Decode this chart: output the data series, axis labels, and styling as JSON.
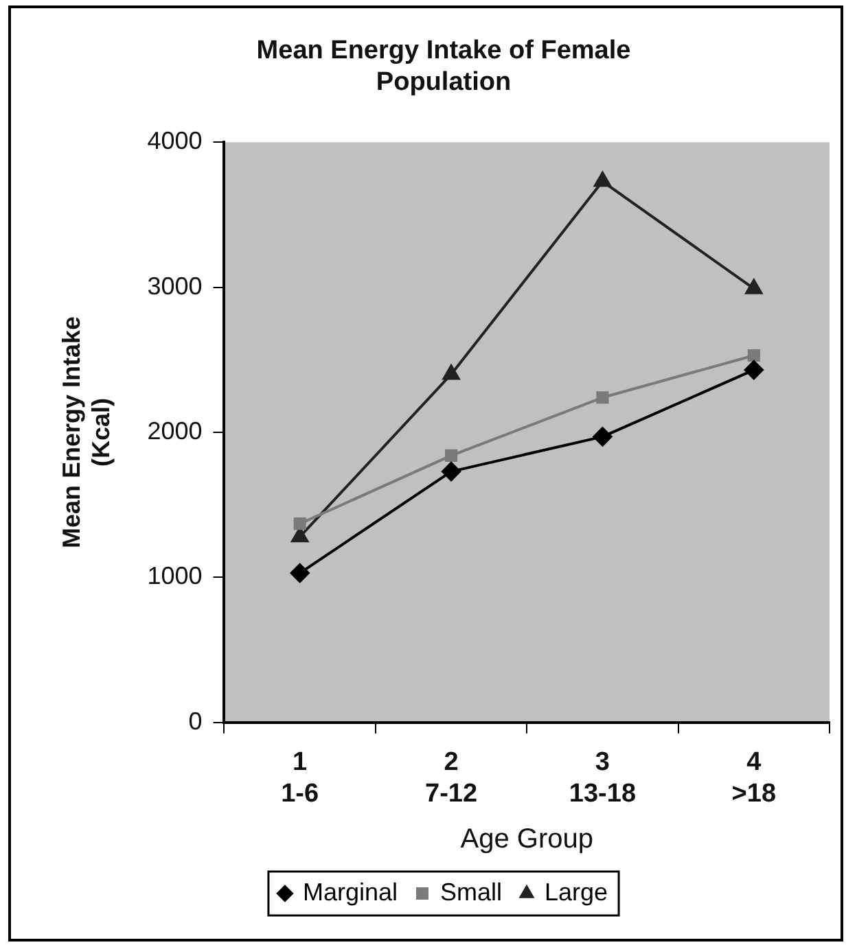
{
  "chart_data": {
    "type": "line",
    "title": "Mean Energy Intake of Female Population",
    "xlabel": "Age Group",
    "ylabel": "Mean Energy Intake (Kcal)",
    "categories": [
      "1\n1-6",
      "2\n7-12",
      "3\n13-18",
      "4\n>18"
    ],
    "series": [
      {
        "name": "Marginal",
        "color": "#000000",
        "marker": "diamond",
        "values": [
          1030,
          1730,
          1970,
          2430
        ]
      },
      {
        "name": "Small",
        "color": "#7a7a7a",
        "marker": "square",
        "values": [
          1370,
          1840,
          2240,
          2530
        ]
      },
      {
        "name": "Large",
        "color": "#222222",
        "marker": "triangle",
        "values": [
          1280,
          2400,
          3730,
          2990
        ]
      }
    ],
    "ylim": [
      0,
      4000
    ],
    "yticks": [
      0,
      1000,
      2000,
      3000,
      4000
    ],
    "grid": false,
    "legend": "bottom",
    "line_style": "solid"
  }
}
